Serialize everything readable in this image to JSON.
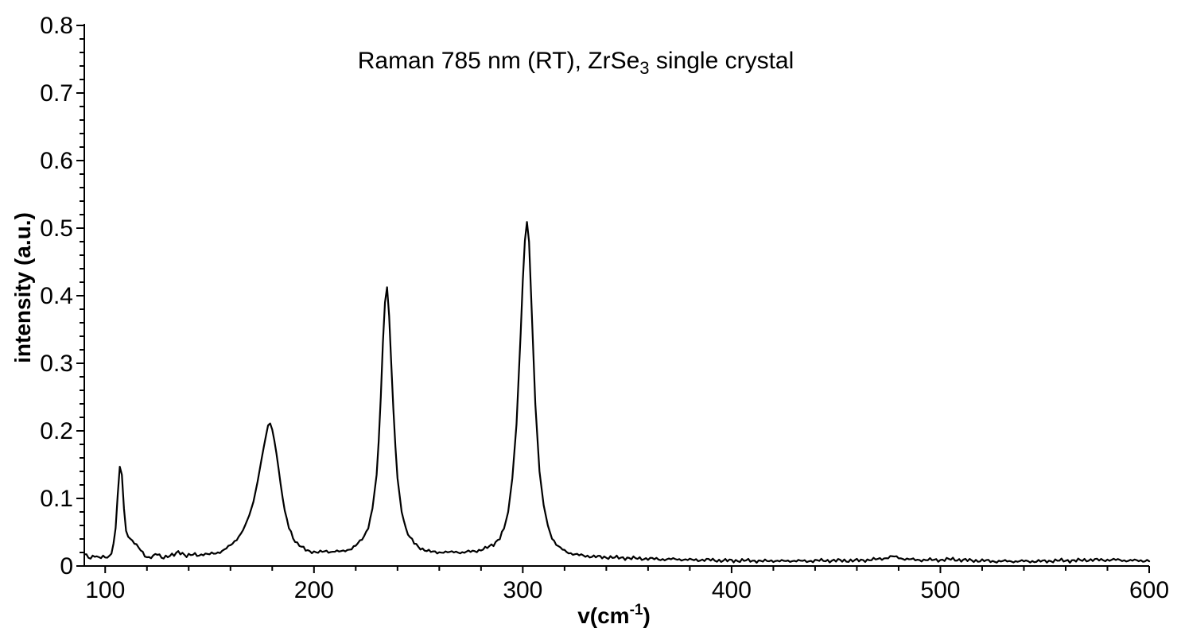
{
  "figure": {
    "background_color": "#ffffff",
    "line_color": "#000000",
    "axis_color": "#000000"
  },
  "chart_data": {
    "type": "line",
    "title": "Raman 785 nm (RT), ZrSe3 single crystal",
    "title_parts": {
      "pre": "Raman 785 nm (RT), ZrSe",
      "sub": "3",
      "post": " single crystal"
    },
    "xlabel": "v(cm-1)",
    "xlabel_parts": {
      "pre": "v(cm",
      "sup": "-1",
      "post": ")"
    },
    "ylabel": "intensity (a.u.)",
    "xlim": [
      90,
      600
    ],
    "ylim": [
      0,
      0.8
    ],
    "grid": false,
    "legend": null,
    "x_major_ticks": [
      100,
      200,
      300,
      400,
      500,
      600
    ],
    "x_major_tick_labels": [
      "100",
      "200",
      "300",
      "400",
      "500",
      "600"
    ],
    "x_minor_step": 20,
    "y_major_ticks": [
      0,
      0.1,
      0.2,
      0.3,
      0.4,
      0.5,
      0.6,
      0.7,
      0.8
    ],
    "y_major_tick_labels": [
      "0",
      "0.1",
      "0.2",
      "0.3",
      "0.4",
      "0.5",
      "0.6",
      "0.7",
      "0.8"
    ],
    "y_minor_step": 0.02,
    "peaks": [
      {
        "center_cm1": 107,
        "height": 0.147
      },
      {
        "center_cm1": 178.5,
        "height": 0.211
      },
      {
        "center_cm1": 234.5,
        "height": 0.42
      },
      {
        "center_cm1": 301.8,
        "height": 0.515
      },
      {
        "center_cm1": 478,
        "height": 0.014,
        "note": "weak bump"
      }
    ],
    "noise": {
      "amplitude": 0.0016,
      "apply_below": 0.06
    },
    "series": [
      {
        "name": "ZrSe3 single crystal Raman spectrum",
        "points": [
          [
            90,
            0.018
          ],
          [
            91.5,
            0.015
          ],
          [
            93,
            0.012
          ],
          [
            94.5,
            0.016
          ],
          [
            96,
            0.013
          ],
          [
            97.5,
            0.011
          ],
          [
            99,
            0.014
          ],
          [
            100.5,
            0.013
          ],
          [
            102,
            0.015
          ],
          [
            103.5,
            0.022
          ],
          [
            105,
            0.055
          ],
          [
            106,
            0.105
          ],
          [
            107,
            0.147
          ],
          [
            108,
            0.135
          ],
          [
            109,
            0.085
          ],
          [
            110,
            0.052
          ],
          [
            111.5,
            0.042
          ],
          [
            113,
            0.037
          ],
          [
            115,
            0.03
          ],
          [
            117,
            0.024
          ],
          [
            119,
            0.016
          ],
          [
            121,
            0.012
          ],
          [
            123,
            0.014
          ],
          [
            125,
            0.018
          ],
          [
            127,
            0.013
          ],
          [
            129,
            0.014
          ],
          [
            131,
            0.015
          ],
          [
            133,
            0.016
          ],
          [
            135,
            0.021
          ],
          [
            137,
            0.019
          ],
          [
            139,
            0.015
          ],
          [
            141,
            0.016
          ],
          [
            143,
            0.017
          ],
          [
            145,
            0.016
          ],
          [
            147,
            0.018
          ],
          [
            149,
            0.017
          ],
          [
            151,
            0.018
          ],
          [
            153,
            0.019
          ],
          [
            155,
            0.021
          ],
          [
            157,
            0.024
          ],
          [
            159,
            0.028
          ],
          [
            161,
            0.033
          ],
          [
            163,
            0.04
          ],
          [
            165,
            0.048
          ],
          [
            167,
            0.06
          ],
          [
            169,
            0.075
          ],
          [
            171,
            0.095
          ],
          [
            173,
            0.125
          ],
          [
            175,
            0.16
          ],
          [
            176.5,
            0.185
          ],
          [
            178,
            0.208
          ],
          [
            179,
            0.211
          ],
          [
            180,
            0.202
          ],
          [
            181.5,
            0.178
          ],
          [
            183,
            0.145
          ],
          [
            184.5,
            0.11
          ],
          [
            186,
            0.082
          ],
          [
            188,
            0.058
          ],
          [
            190,
            0.042
          ],
          [
            192,
            0.033
          ],
          [
            194,
            0.028
          ],
          [
            196,
            0.024
          ],
          [
            198,
            0.022
          ],
          [
            200,
            0.021
          ],
          [
            202,
            0.02
          ],
          [
            204,
            0.021
          ],
          [
            206,
            0.022
          ],
          [
            208,
            0.021
          ],
          [
            210,
            0.022
          ],
          [
            212,
            0.021
          ],
          [
            214,
            0.022
          ],
          [
            216,
            0.024
          ],
          [
            218,
            0.026
          ],
          [
            220,
            0.03
          ],
          [
            222,
            0.036
          ],
          [
            224,
            0.044
          ],
          [
            226,
            0.058
          ],
          [
            228,
            0.085
          ],
          [
            230,
            0.135
          ],
          [
            231.5,
            0.21
          ],
          [
            233,
            0.33
          ],
          [
            234.5,
            0.42
          ],
          [
            235.5,
            0.405
          ],
          [
            237,
            0.3
          ],
          [
            238.5,
            0.2
          ],
          [
            240,
            0.13
          ],
          [
            242,
            0.08
          ],
          [
            244,
            0.055
          ],
          [
            246,
            0.042
          ],
          [
            248,
            0.034
          ],
          [
            250,
            0.028
          ],
          [
            253,
            0.024
          ],
          [
            256,
            0.021
          ],
          [
            259,
            0.02
          ],
          [
            262,
            0.021
          ],
          [
            265,
            0.02
          ],
          [
            268,
            0.021
          ],
          [
            271,
            0.02
          ],
          [
            274,
            0.021
          ],
          [
            277,
            0.022
          ],
          [
            280,
            0.024
          ],
          [
            283,
            0.027
          ],
          [
            286,
            0.032
          ],
          [
            289,
            0.042
          ],
          [
            291,
            0.055
          ],
          [
            293,
            0.08
          ],
          [
            295,
            0.13
          ],
          [
            297,
            0.21
          ],
          [
            299,
            0.345
          ],
          [
            300.5,
            0.46
          ],
          [
            301.8,
            0.515
          ],
          [
            303,
            0.48
          ],
          [
            304.5,
            0.36
          ],
          [
            306,
            0.24
          ],
          [
            308,
            0.14
          ],
          [
            310,
            0.09
          ],
          [
            312,
            0.06
          ],
          [
            314,
            0.042
          ],
          [
            316,
            0.032
          ],
          [
            318,
            0.026
          ],
          [
            321,
            0.021
          ],
          [
            324,
            0.018
          ],
          [
            327,
            0.016
          ],
          [
            330,
            0.015
          ],
          [
            334,
            0.014
          ],
          [
            338,
            0.013
          ],
          [
            342,
            0.013
          ],
          [
            346,
            0.012
          ],
          [
            350,
            0.012
          ],
          [
            355,
            0.011
          ],
          [
            360,
            0.011
          ],
          [
            365,
            0.01
          ],
          [
            370,
            0.01
          ],
          [
            375,
            0.01
          ],
          [
            380,
            0.009
          ],
          [
            385,
            0.009
          ],
          [
            390,
            0.009
          ],
          [
            395,
            0.008
          ],
          [
            400,
            0.008
          ],
          [
            405,
            0.008
          ],
          [
            410,
            0.008
          ],
          [
            415,
            0.007
          ],
          [
            420,
            0.008
          ],
          [
            425,
            0.007
          ],
          [
            430,
            0.008
          ],
          [
            435,
            0.007
          ],
          [
            440,
            0.008
          ],
          [
            445,
            0.008
          ],
          [
            450,
            0.008
          ],
          [
            455,
            0.008
          ],
          [
            460,
            0.008
          ],
          [
            465,
            0.009
          ],
          [
            470,
            0.01
          ],
          [
            474,
            0.012
          ],
          [
            477,
            0.014
          ],
          [
            479,
            0.013
          ],
          [
            482,
            0.011
          ],
          [
            485,
            0.01
          ],
          [
            488,
            0.009
          ],
          [
            492,
            0.009
          ],
          [
            496,
            0.009
          ],
          [
            500,
            0.009
          ],
          [
            505,
            0.01
          ],
          [
            510,
            0.009
          ],
          [
            515,
            0.008
          ],
          [
            520,
            0.008
          ],
          [
            525,
            0.007
          ],
          [
            530,
            0.007
          ],
          [
            535,
            0.007
          ],
          [
            540,
            0.007
          ],
          [
            545,
            0.007
          ],
          [
            550,
            0.007
          ],
          [
            555,
            0.008
          ],
          [
            560,
            0.008
          ],
          [
            565,
            0.008
          ],
          [
            570,
            0.009
          ],
          [
            575,
            0.009
          ],
          [
            580,
            0.009
          ],
          [
            585,
            0.009
          ],
          [
            590,
            0.008
          ],
          [
            595,
            0.008
          ],
          [
            600,
            0.008
          ]
        ]
      }
    ]
  }
}
